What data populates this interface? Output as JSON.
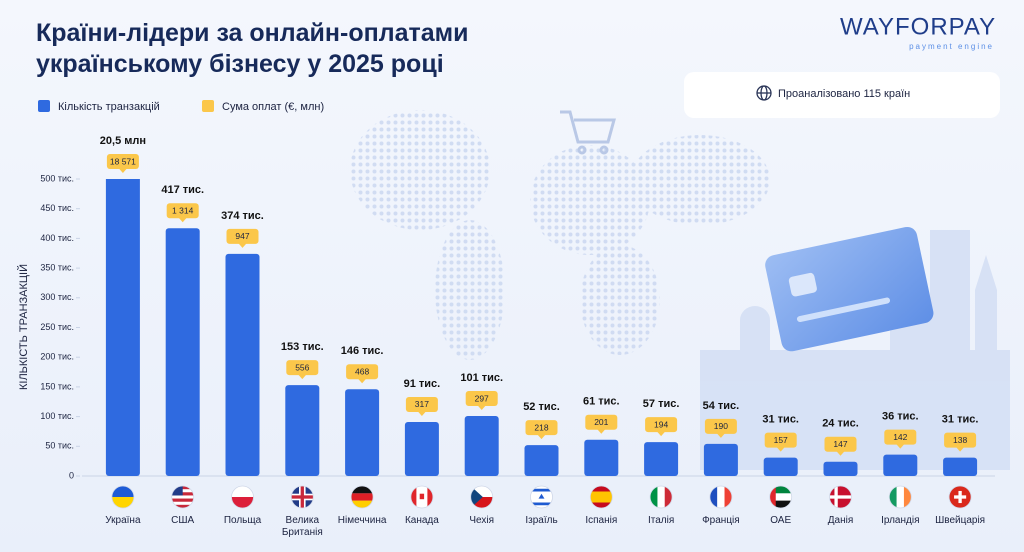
{
  "chart_data": {
    "type": "bar",
    "title": "Країни-лідери за онлайн-оплатами українському бізнесу у 2025 році",
    "logo": {
      "name": "WAYFORPAY",
      "tagline": "payment engine"
    },
    "note": "Проаналізовано 115 країн",
    "y_label": "КІЛЬКІСТЬ ТРАНЗАКЦІЙ",
    "categories": [
      "Україна",
      "США",
      "Польща",
      "Велика Британія",
      "Німеччина",
      "Канада",
      "Чехія",
      "Ізраїль",
      "Іспанія",
      "Італія",
      "Франція",
      "ОАЕ",
      "Данія",
      "Ірландія",
      "Швейцарія"
    ],
    "series": [
      {
        "name": "Кількість транзакцій",
        "color": "#2f6ae0",
        "values": [
          20500,
          417,
          374,
          153,
          146,
          91,
          101,
          52,
          61,
          57,
          54,
          31,
          24,
          36,
          31
        ],
        "value_labels": [
          "20,5 млн",
          "417 тис.",
          "374 тис.",
          "153 тис.",
          "146 тис.",
          "91 тис.",
          "101 тис.",
          "52 тис.",
          "61 тис.",
          "57 тис.",
          "54 тис.",
          "31 тис.",
          "24 тис.",
          "36 тис.",
          "31 тис."
        ]
      },
      {
        "name": "Сума оплат (€, млн)",
        "color": "#fbc74a",
        "values": [
          18571,
          1314,
          947,
          556,
          468,
          317,
          297,
          218,
          201,
          194,
          190,
          157,
          147,
          142,
          138
        ],
        "value_labels": [
          "18 571",
          "1 314",
          "947",
          "556",
          "468",
          "317",
          "297",
          "218",
          "201",
          "194",
          "190",
          "157",
          "147",
          "142",
          "138"
        ]
      }
    ],
    "ylim": [
      0,
      500
    ],
    "yticks": [
      0,
      {
        "value": 50,
        "label": "50 тис."
      },
      {
        "value": 100,
        "label": "100 тис."
      },
      {
        "value": 150,
        "label": "150 тис."
      },
      {
        "value": 200,
        "label": "200 тис."
      },
      {
        "value": 250,
        "label": "250 тис."
      },
      {
        "value": 300,
        "label": "300 тис."
      },
      {
        "value": 350,
        "label": "350 тис."
      },
      {
        "value": 400,
        "label": "400 тис."
      },
      {
        "value": 450,
        "label": "450 тис."
      },
      {
        "value": 500,
        "label": "500 тис."
      }
    ],
    "grid": false
  }
}
